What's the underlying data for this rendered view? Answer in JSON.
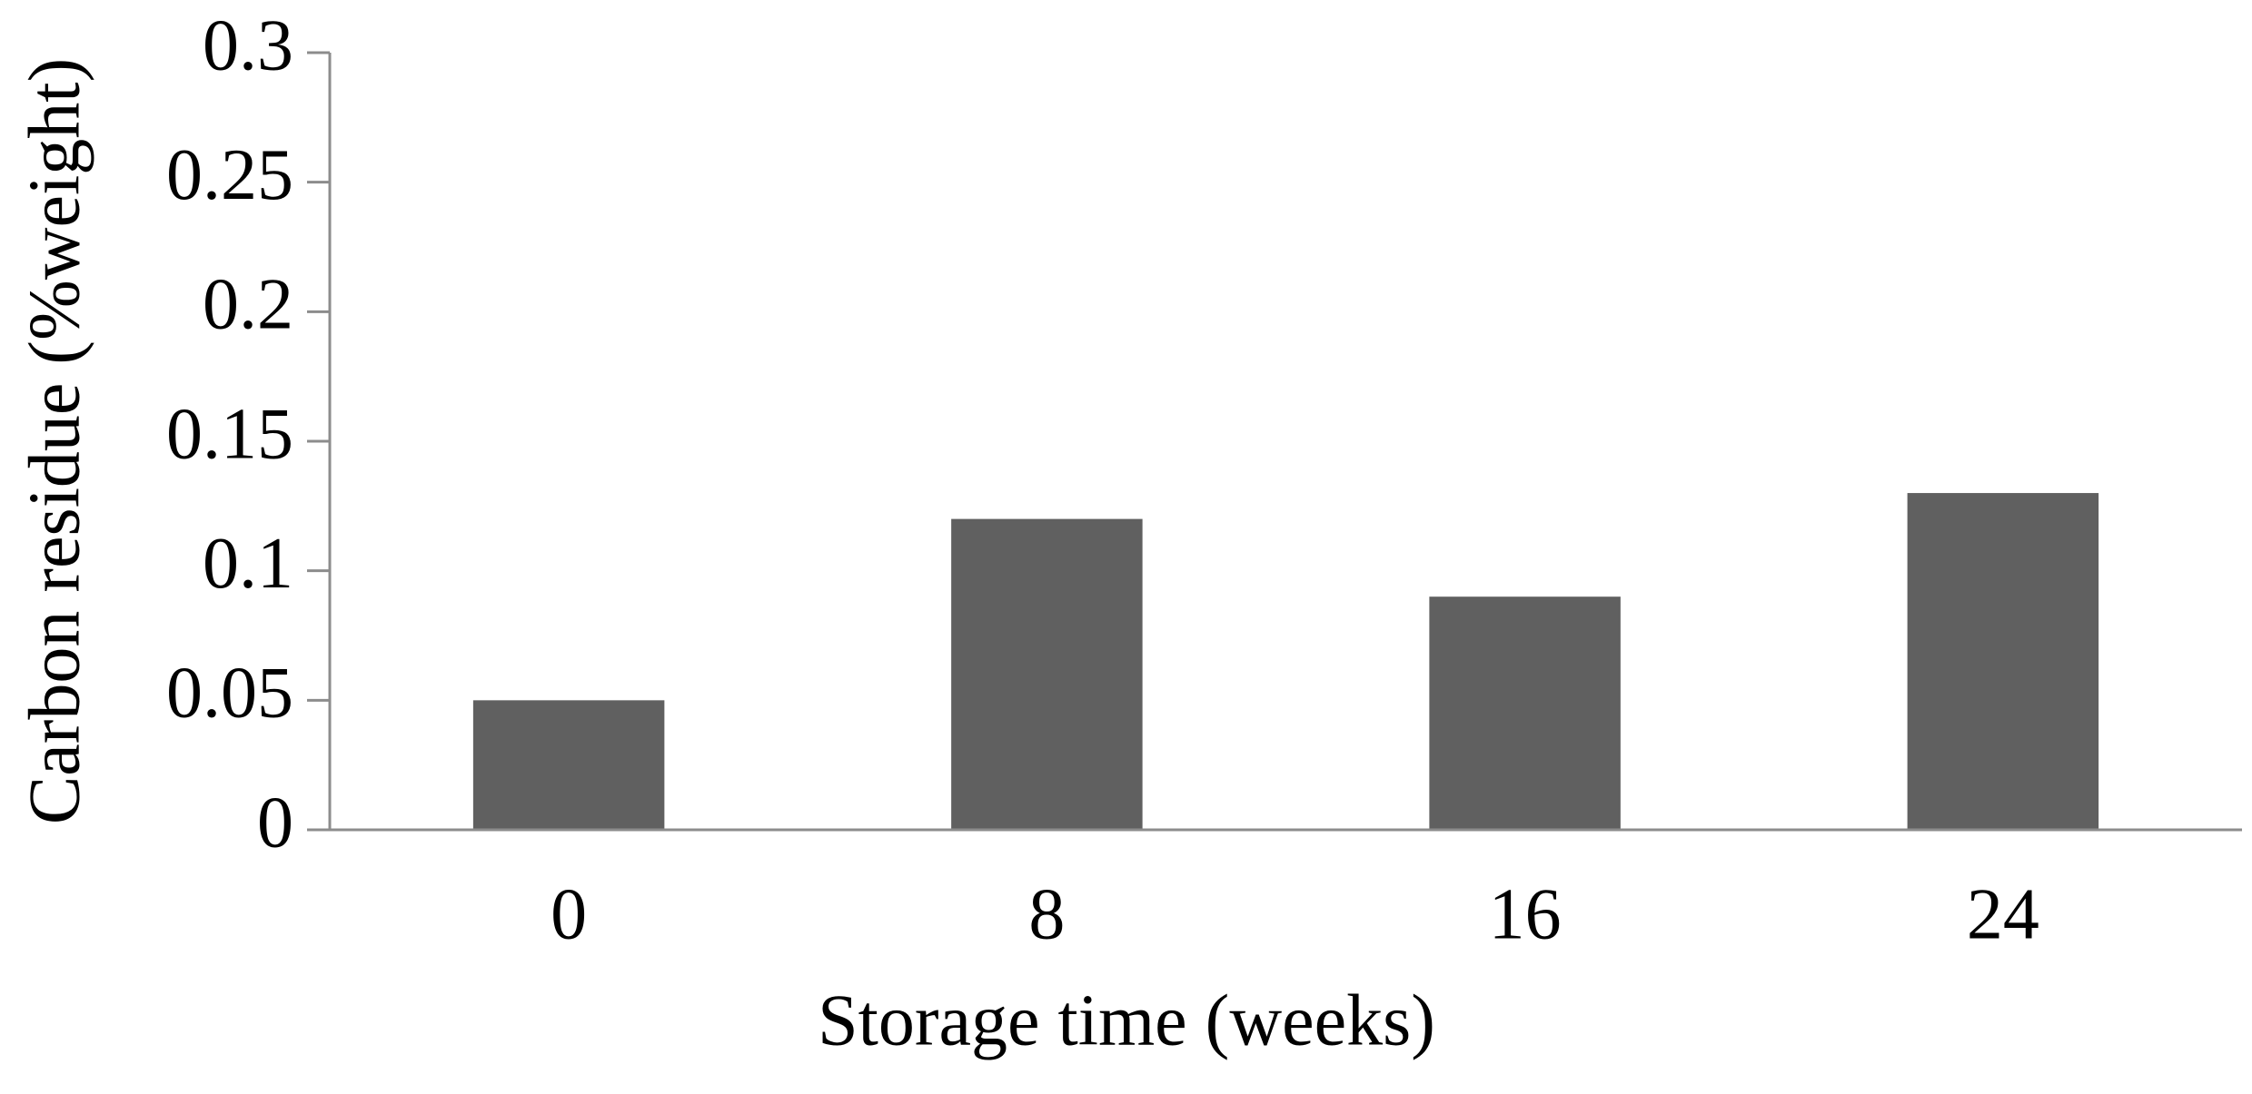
{
  "chart_data": {
    "type": "bar",
    "x_label": "Storage time (weeks)",
    "y_label": "Carbon residue (%weight)",
    "categories": [
      "0",
      "8",
      "16",
      "24"
    ],
    "values": [
      0.05,
      0.12,
      0.09,
      0.13
    ],
    "color": "#606060",
    "ylim": [
      0,
      0.3
    ],
    "yticks": [
      0,
      0.05,
      0.1,
      0.15,
      0.2,
      0.25,
      0.3
    ],
    "grid": false
  }
}
